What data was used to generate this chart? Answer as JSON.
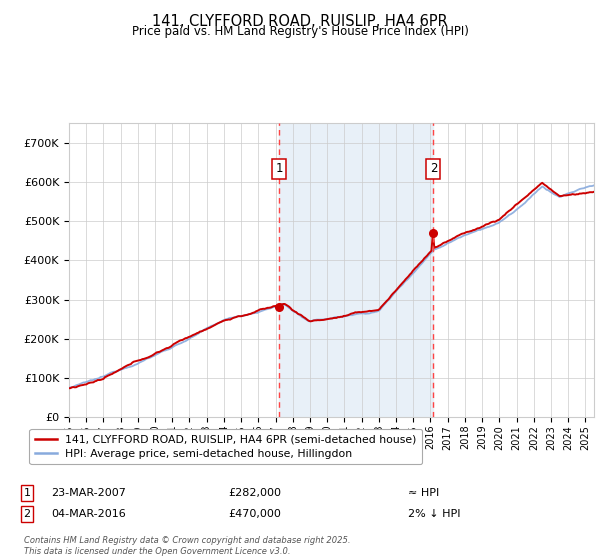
{
  "title": "141, CLYFFORD ROAD, RUISLIP, HA4 6PR",
  "subtitle": "Price paid vs. HM Land Registry's House Price Index (HPI)",
  "legend_line1": "141, CLYFFORD ROAD, RUISLIP, HA4 6PR (semi-detached house)",
  "legend_line2": "HPI: Average price, semi-detached house, Hillingdon",
  "annotation1_date": "23-MAR-2007",
  "annotation1_price": "£282,000",
  "annotation1_hpi": "≈ HPI",
  "annotation2_date": "04-MAR-2016",
  "annotation2_price": "£470,000",
  "annotation2_hpi": "2% ↓ HPI",
  "footer": "Contains HM Land Registry data © Crown copyright and database right 2025.\nThis data is licensed under the Open Government Licence v3.0.",
  "sale1_year": 2007.22,
  "sale1_price": 282000,
  "sale2_year": 2016.17,
  "sale2_price": 470000,
  "hpi_color": "#88aadd",
  "price_color": "#cc0000",
  "shade_color": "#e8f0f8",
  "vline_color": "#ff4444",
  "background_color": "#ffffff",
  "grid_color": "#cccccc",
  "ylim_min": 0,
  "ylim_max": 750000
}
